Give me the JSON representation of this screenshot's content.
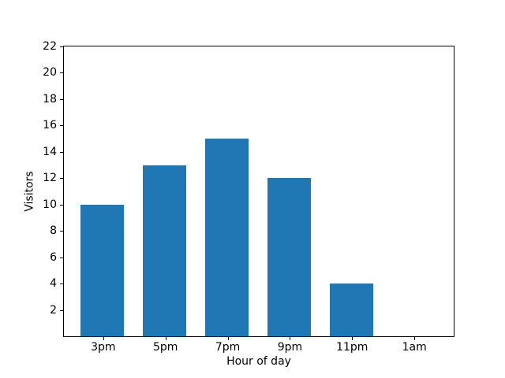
{
  "chart_data": {
    "type": "bar",
    "categories": [
      "3pm",
      "5pm",
      "7pm",
      "9pm",
      "11pm",
      "1am"
    ],
    "values": [
      10,
      13,
      15,
      12,
      4,
      0
    ],
    "xlabel": "Hour of day",
    "ylabel": "Visitors",
    "yticks": [
      2,
      4,
      6,
      8,
      10,
      12,
      14,
      16,
      18,
      20,
      22
    ],
    "ylim": [
      0,
      22
    ],
    "bar_color": "#1f77b4",
    "grid": false,
    "legend_position": "none",
    "background_color": "#ffffff",
    "spine_color": "#000000"
  }
}
